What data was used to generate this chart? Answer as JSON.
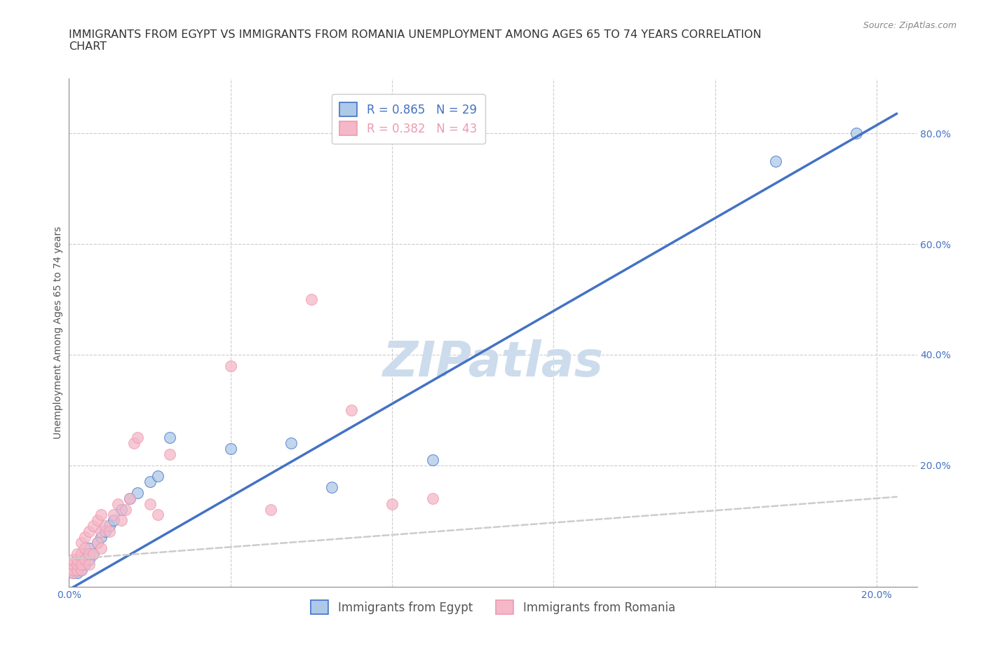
{
  "title": "IMMIGRANTS FROM EGYPT VS IMMIGRANTS FROM ROMANIA UNEMPLOYMENT AMONG AGES 65 TO 74 YEARS CORRELATION\nCHART",
  "source": "Source: ZipAtlas.com",
  "xlabel": "",
  "ylabel": "Unemployment Among Ages 65 to 74 years",
  "xlim": [
    0.0,
    0.21
  ],
  "ylim": [
    -0.02,
    0.9
  ],
  "xticks": [
    0.0,
    0.04,
    0.08,
    0.12,
    0.16,
    0.2
  ],
  "xtick_labels": [
    "0.0%",
    "",
    "",
    "",
    "",
    "20.0%"
  ],
  "yticks": [
    0.0,
    0.2,
    0.4,
    0.6,
    0.8
  ],
  "ytick_labels": [
    "",
    "20.0%",
    "40.0%",
    "60.0%",
    "80.0%"
  ],
  "egypt_R": 0.865,
  "egypt_N": 29,
  "romania_R": 0.382,
  "romania_N": 43,
  "egypt_color": "#adc9e8",
  "romania_color": "#f5b8c8",
  "egypt_line_color": "#4472c4",
  "romania_line_color": "#ed9ab0",
  "egypt_x": [
    0.001,
    0.001,
    0.002,
    0.002,
    0.002,
    0.003,
    0.003,
    0.004,
    0.004,
    0.005,
    0.005,
    0.006,
    0.007,
    0.008,
    0.009,
    0.01,
    0.011,
    0.013,
    0.015,
    0.017,
    0.02,
    0.022,
    0.025,
    0.04,
    0.055,
    0.065,
    0.09,
    0.175,
    0.195
  ],
  "egypt_y": [
    0.005,
    0.01,
    0.005,
    0.01,
    0.02,
    0.01,
    0.03,
    0.02,
    0.04,
    0.03,
    0.05,
    0.04,
    0.06,
    0.07,
    0.08,
    0.09,
    0.1,
    0.12,
    0.14,
    0.15,
    0.17,
    0.18,
    0.25,
    0.23,
    0.24,
    0.16,
    0.21,
    0.75,
    0.8
  ],
  "romania_x": [
    0.001,
    0.001,
    0.001,
    0.001,
    0.002,
    0.002,
    0.002,
    0.002,
    0.003,
    0.003,
    0.003,
    0.003,
    0.004,
    0.004,
    0.004,
    0.005,
    0.005,
    0.005,
    0.006,
    0.006,
    0.007,
    0.007,
    0.008,
    0.008,
    0.008,
    0.009,
    0.01,
    0.011,
    0.012,
    0.013,
    0.014,
    0.015,
    0.016,
    0.017,
    0.02,
    0.022,
    0.025,
    0.04,
    0.05,
    0.06,
    0.07,
    0.08,
    0.09
  ],
  "romania_y": [
    0.005,
    0.01,
    0.02,
    0.03,
    0.01,
    0.02,
    0.03,
    0.04,
    0.01,
    0.02,
    0.04,
    0.06,
    0.03,
    0.05,
    0.07,
    0.02,
    0.04,
    0.08,
    0.04,
    0.09,
    0.06,
    0.1,
    0.05,
    0.08,
    0.11,
    0.09,
    0.08,
    0.11,
    0.13,
    0.1,
    0.12,
    0.14,
    0.24,
    0.25,
    0.13,
    0.11,
    0.22,
    0.38,
    0.12,
    0.5,
    0.3,
    0.13,
    0.14
  ],
  "watermark": "ZIPatlas",
  "watermark_color": "#cddcec",
  "background_color": "#ffffff",
  "grid_color": "#cccccc",
  "title_fontsize": 11.5,
  "axis_label_fontsize": 10,
  "tick_fontsize": 10,
  "legend_fontsize": 12,
  "egypt_line_intercept": -0.025,
  "egypt_line_slope": 4.2,
  "romania_line_intercept": 0.03,
  "romania_line_slope": 0.55
}
